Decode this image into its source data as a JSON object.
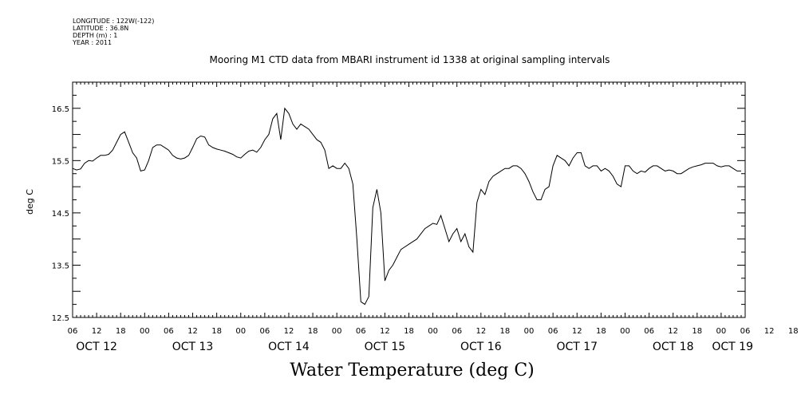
{
  "header": {
    "longitude": "LONGITUDE : 122W(-122)",
    "latitude": "LATITUDE : 36.8N",
    "depth": "DEPTH (m) : 1",
    "year": "YEAR : 2011"
  },
  "chart_data": {
    "type": "line",
    "title": "Mooring M1 CTD data from MBARI instrument id 1338 at original sampling intervals",
    "ylabel": "deg C",
    "caption": "Water Temperature (deg C)",
    "ylim": [
      12.5,
      17.0
    ],
    "yticks": [
      12.5,
      13.5,
      14.5,
      15.5,
      16.5
    ],
    "xlim_hours": [
      0,
      168
    ],
    "hour_tick_labels": [
      "06",
      "12",
      "18",
      "00",
      "06",
      "12",
      "18",
      "00",
      "06",
      "12",
      "18",
      "00",
      "06",
      "12",
      "18",
      "00",
      "06",
      "12",
      "18",
      "00",
      "06",
      "12",
      "18",
      "00",
      "06",
      "12",
      "18",
      "00",
      "06",
      "12",
      "18",
      "00",
      "06"
    ],
    "day_labels": [
      "OCT 12",
      "OCT 13",
      "OCT 14",
      "OCT 15",
      "OCT 16",
      "OCT 17",
      "OCT 18",
      "OCT 19"
    ],
    "grid": false,
    "series": [
      {
        "x": [
          0,
          1,
          2,
          3,
          4,
          5,
          6,
          7,
          8,
          9,
          10,
          11,
          12,
          13,
          14,
          15,
          16,
          17,
          18,
          19,
          20,
          21,
          22,
          23,
          24,
          25,
          26,
          27,
          28,
          29,
          30,
          31,
          32,
          33,
          34,
          35,
          36,
          37,
          38,
          39,
          40,
          41,
          42,
          43,
          44,
          45,
          46,
          47,
          48,
          49,
          50,
          51,
          52,
          53,
          54,
          55,
          56,
          57,
          58,
          59,
          60,
          61,
          62,
          63,
          64,
          65,
          66,
          67,
          68,
          69,
          70,
          71,
          72,
          73,
          74,
          75,
          76,
          77,
          78,
          79,
          80,
          81,
          82,
          83,
          84,
          85,
          86,
          87,
          88,
          89,
          90,
          91,
          92,
          93,
          94,
          95,
          96,
          97,
          98,
          99,
          100,
          101,
          102,
          103,
          104,
          105,
          106,
          107,
          108,
          109,
          110,
          111,
          112,
          113,
          114,
          115,
          116,
          117,
          118,
          119,
          120,
          121,
          122,
          123,
          124,
          125,
          126,
          127,
          128,
          129,
          130,
          131,
          132,
          133,
          134,
          135,
          136,
          137,
          138,
          139,
          140,
          141,
          142,
          143,
          144,
          145,
          146,
          147,
          148,
          149,
          150,
          151,
          152,
          153,
          154,
          155,
          156,
          157,
          158,
          159,
          160,
          161,
          162,
          163,
          164,
          165,
          166,
          167
        ],
        "values": [
          15.35,
          15.32,
          15.34,
          15.45,
          15.5,
          15.49,
          15.55,
          15.6,
          15.6,
          15.62,
          15.7,
          15.85,
          16.0,
          16.05,
          15.85,
          15.65,
          15.55,
          15.3,
          15.32,
          15.5,
          15.75,
          15.8,
          15.8,
          15.75,
          15.7,
          15.6,
          15.55,
          15.53,
          15.55,
          15.6,
          15.75,
          15.92,
          15.97,
          15.95,
          15.8,
          15.75,
          15.72,
          15.7,
          15.68,
          15.65,
          15.62,
          15.57,
          15.55,
          15.62,
          15.68,
          15.7,
          15.66,
          15.75,
          15.9,
          16.0,
          16.3,
          16.4,
          15.9,
          16.5,
          16.4,
          16.2,
          16.1,
          16.2,
          16.15,
          16.1,
          16.0,
          15.9,
          15.85,
          15.7,
          15.35,
          15.4,
          15.35,
          15.35,
          15.45,
          15.35,
          15.05,
          14.0,
          12.8,
          12.75,
          12.9,
          14.6,
          14.95,
          14.5,
          13.2,
          13.4,
          13.5,
          13.65,
          13.8,
          13.85,
          13.9,
          13.95,
          14.0,
          14.1,
          14.2,
          14.25,
          14.3,
          14.28,
          14.45,
          14.2,
          13.95,
          14.1,
          14.2,
          13.95,
          14.1,
          13.85,
          13.75,
          14.7,
          14.95,
          14.85,
          15.1,
          15.2,
          15.25,
          15.3,
          15.35,
          15.35,
          15.4,
          15.4,
          15.35,
          15.25,
          15.1,
          14.9,
          14.75,
          14.75,
          14.95,
          15.0,
          15.4,
          15.6,
          15.55,
          15.5,
          15.4,
          15.55,
          15.65,
          15.65,
          15.4,
          15.35,
          15.4,
          15.4,
          15.3,
          15.35,
          15.3,
          15.2,
          15.05,
          15.0,
          15.4,
          15.4,
          15.3,
          15.25,
          15.3,
          15.28,
          15.35,
          15.4,
          15.4,
          15.35,
          15.3,
          15.32,
          15.3,
          15.25,
          15.25,
          15.3,
          15.35,
          15.38,
          15.4,
          15.42,
          15.45,
          15.45,
          15.45,
          15.4,
          15.38,
          15.4,
          15.4,
          15.35,
          15.3,
          15.3
        ]
      }
    ]
  }
}
